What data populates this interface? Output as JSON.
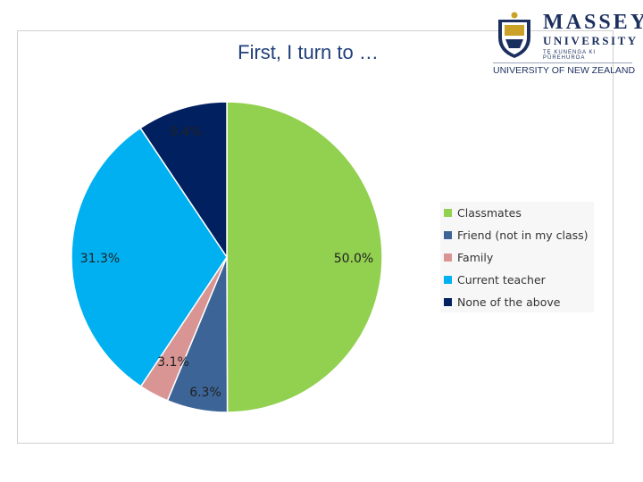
{
  "logo": {
    "name": "MASSEY",
    "line2": "UNIVERSITY",
    "line3": "TE KUNENGA KI PŪREHUROA",
    "line4": "UNIVERSITY OF NEW ZEALAND",
    "colors": {
      "navy": "#1b2f5e",
      "gold": "#c9a227"
    }
  },
  "chart_data": {
    "type": "pie",
    "title": "First, I turn to …",
    "legend_position": "right",
    "start_angle_deg": 0,
    "direction": "clockwise",
    "slices": [
      {
        "name": "Classmates",
        "value": 50.0,
        "label": "50.0%",
        "color": "#92d050"
      },
      {
        "name": "Friend (not in my class)",
        "value": 6.3,
        "label": "6.3%",
        "color": "#3c6497"
      },
      {
        "name": "Family",
        "value": 3.1,
        "label": "3.1%",
        "color": "#d99594"
      },
      {
        "name": "Current teacher",
        "value": 31.3,
        "label": "31.3%",
        "color": "#00b0f0"
      },
      {
        "name": "None of the above",
        "value": 9.4,
        "label": "9.4%",
        "color": "#002060"
      }
    ]
  }
}
